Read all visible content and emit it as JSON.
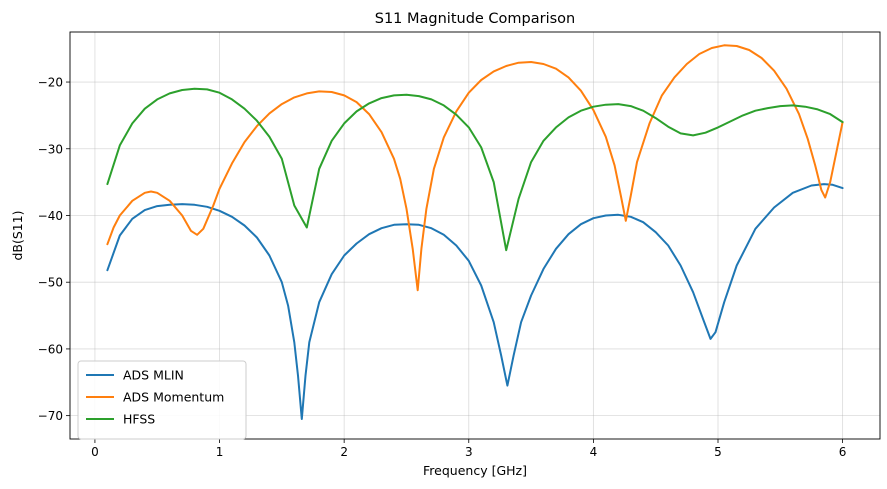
{
  "chart_data": {
    "type": "line",
    "title": "S11 Magnitude Comparison",
    "xlabel": "Frequency [GHz]",
    "ylabel": "dB(S11)",
    "xlim": [
      -0.2,
      6.3
    ],
    "ylim": [
      -73.5,
      -12.5
    ],
    "xticks": [
      0,
      1,
      2,
      3,
      4,
      5,
      6
    ],
    "yticks": [
      -70,
      -60,
      -50,
      -40,
      -30,
      -20
    ],
    "xtick_labels": [
      "0",
      "1",
      "2",
      "3",
      "4",
      "5",
      "6"
    ],
    "ytick_labels": [
      "−70",
      "−60",
      "−50",
      "−40",
      "−30",
      "−20"
    ],
    "grid": true,
    "legend_position": "lower-left",
    "series": [
      {
        "name": "ADS MLIN",
        "color": "#1f77b4",
        "points": [
          [
            0.1,
            -48.2
          ],
          [
            0.2,
            -43.0
          ],
          [
            0.3,
            -40.5
          ],
          [
            0.4,
            -39.2
          ],
          [
            0.5,
            -38.6
          ],
          [
            0.6,
            -38.4
          ],
          [
            0.7,
            -38.3
          ],
          [
            0.8,
            -38.4
          ],
          [
            0.9,
            -38.7
          ],
          [
            1.0,
            -39.3
          ],
          [
            1.1,
            -40.2
          ],
          [
            1.2,
            -41.5
          ],
          [
            1.3,
            -43.3
          ],
          [
            1.4,
            -46.0
          ],
          [
            1.5,
            -50.0
          ],
          [
            1.55,
            -53.5
          ],
          [
            1.6,
            -59.0
          ],
          [
            1.63,
            -64.0
          ],
          [
            1.66,
            -70.5
          ],
          [
            1.69,
            -64.0
          ],
          [
            1.72,
            -59.0
          ],
          [
            1.8,
            -53.0
          ],
          [
            1.9,
            -48.8
          ],
          [
            2.0,
            -46.0
          ],
          [
            2.1,
            -44.2
          ],
          [
            2.2,
            -42.8
          ],
          [
            2.3,
            -41.9
          ],
          [
            2.4,
            -41.4
          ],
          [
            2.5,
            -41.3
          ],
          [
            2.6,
            -41.4
          ],
          [
            2.7,
            -41.9
          ],
          [
            2.8,
            -42.9
          ],
          [
            2.9,
            -44.5
          ],
          [
            3.0,
            -46.8
          ],
          [
            3.1,
            -50.5
          ],
          [
            3.2,
            -56.0
          ],
          [
            3.26,
            -61.0
          ],
          [
            3.31,
            -65.5
          ],
          [
            3.36,
            -61.0
          ],
          [
            3.42,
            -56.0
          ],
          [
            3.5,
            -52.0
          ],
          [
            3.6,
            -48.0
          ],
          [
            3.7,
            -45.0
          ],
          [
            3.8,
            -42.8
          ],
          [
            3.9,
            -41.3
          ],
          [
            4.0,
            -40.4
          ],
          [
            4.1,
            -40.0
          ],
          [
            4.2,
            -39.9
          ],
          [
            4.3,
            -40.2
          ],
          [
            4.4,
            -41.0
          ],
          [
            4.5,
            -42.5
          ],
          [
            4.6,
            -44.5
          ],
          [
            4.7,
            -47.5
          ],
          [
            4.8,
            -51.5
          ],
          [
            4.88,
            -55.5
          ],
          [
            4.94,
            -58.5
          ],
          [
            4.98,
            -57.5
          ],
          [
            5.05,
            -53.0
          ],
          [
            5.15,
            -47.5
          ],
          [
            5.3,
            -42.0
          ],
          [
            5.45,
            -38.8
          ],
          [
            5.6,
            -36.6
          ],
          [
            5.75,
            -35.5
          ],
          [
            5.85,
            -35.3
          ],
          [
            5.92,
            -35.4
          ],
          [
            6.0,
            -35.9
          ]
        ]
      },
      {
        "name": "ADS Momentum",
        "color": "#ff7f0e",
        "points": [
          [
            0.1,
            -44.3
          ],
          [
            0.15,
            -41.8
          ],
          [
            0.2,
            -40.0
          ],
          [
            0.3,
            -37.8
          ],
          [
            0.4,
            -36.6
          ],
          [
            0.45,
            -36.4
          ],
          [
            0.5,
            -36.6
          ],
          [
            0.6,
            -37.8
          ],
          [
            0.7,
            -40.0
          ],
          [
            0.77,
            -42.3
          ],
          [
            0.82,
            -42.9
          ],
          [
            0.87,
            -42.0
          ],
          [
            0.95,
            -38.5
          ],
          [
            1.0,
            -36.0
          ],
          [
            1.1,
            -32.2
          ],
          [
            1.2,
            -29.0
          ],
          [
            1.3,
            -26.6
          ],
          [
            1.4,
            -24.7
          ],
          [
            1.5,
            -23.3
          ],
          [
            1.6,
            -22.3
          ],
          [
            1.7,
            -21.7
          ],
          [
            1.8,
            -21.4
          ],
          [
            1.9,
            -21.5
          ],
          [
            2.0,
            -22.0
          ],
          [
            2.1,
            -23.0
          ],
          [
            2.2,
            -24.8
          ],
          [
            2.3,
            -27.5
          ],
          [
            2.4,
            -31.5
          ],
          [
            2.45,
            -34.5
          ],
          [
            2.5,
            -39.0
          ],
          [
            2.55,
            -45.0
          ],
          [
            2.59,
            -51.2
          ],
          [
            2.62,
            -45.0
          ],
          [
            2.66,
            -39.0
          ],
          [
            2.72,
            -33.0
          ],
          [
            2.8,
            -28.3
          ],
          [
            2.9,
            -24.4
          ],
          [
            3.0,
            -21.6
          ],
          [
            3.1,
            -19.7
          ],
          [
            3.2,
            -18.4
          ],
          [
            3.3,
            -17.6
          ],
          [
            3.4,
            -17.1
          ],
          [
            3.5,
            -17.0
          ],
          [
            3.6,
            -17.3
          ],
          [
            3.7,
            -18.0
          ],
          [
            3.8,
            -19.3
          ],
          [
            3.9,
            -21.3
          ],
          [
            4.0,
            -24.2
          ],
          [
            4.1,
            -28.2
          ],
          [
            4.17,
            -32.5
          ],
          [
            4.22,
            -37.0
          ],
          [
            4.26,
            -40.8
          ],
          [
            4.3,
            -37.0
          ],
          [
            4.35,
            -32.0
          ],
          [
            4.45,
            -26.2
          ],
          [
            4.55,
            -22.0
          ],
          [
            4.65,
            -19.3
          ],
          [
            4.75,
            -17.3
          ],
          [
            4.85,
            -15.8
          ],
          [
            4.95,
            -14.9
          ],
          [
            5.05,
            -14.5
          ],
          [
            5.15,
            -14.6
          ],
          [
            5.25,
            -15.2
          ],
          [
            5.35,
            -16.4
          ],
          [
            5.45,
            -18.3
          ],
          [
            5.55,
            -21.0
          ],
          [
            5.65,
            -24.8
          ],
          [
            5.72,
            -28.5
          ],
          [
            5.78,
            -32.5
          ],
          [
            5.83,
            -36.2
          ],
          [
            5.86,
            -37.3
          ],
          [
            5.9,
            -35.0
          ],
          [
            5.95,
            -30.5
          ],
          [
            6.0,
            -26.0
          ]
        ]
      },
      {
        "name": "HFSS",
        "color": "#2ca02c",
        "points": [
          [
            0.1,
            -35.3
          ],
          [
            0.2,
            -29.5
          ],
          [
            0.3,
            -26.2
          ],
          [
            0.4,
            -24.0
          ],
          [
            0.5,
            -22.6
          ],
          [
            0.6,
            -21.7
          ],
          [
            0.7,
            -21.2
          ],
          [
            0.8,
            -21.0
          ],
          [
            0.9,
            -21.1
          ],
          [
            1.0,
            -21.6
          ],
          [
            1.1,
            -22.6
          ],
          [
            1.2,
            -24.0
          ],
          [
            1.3,
            -25.8
          ],
          [
            1.4,
            -28.2
          ],
          [
            1.5,
            -31.5
          ],
          [
            1.6,
            -38.5
          ],
          [
            1.7,
            -41.8
          ],
          [
            1.8,
            -33.0
          ],
          [
            1.9,
            -28.8
          ],
          [
            2.0,
            -26.2
          ],
          [
            2.1,
            -24.4
          ],
          [
            2.2,
            -23.2
          ],
          [
            2.3,
            -22.4
          ],
          [
            2.4,
            -22.0
          ],
          [
            2.5,
            -21.9
          ],
          [
            2.6,
            -22.1
          ],
          [
            2.7,
            -22.6
          ],
          [
            2.8,
            -23.5
          ],
          [
            2.9,
            -24.9
          ],
          [
            3.0,
            -26.8
          ],
          [
            3.1,
            -29.8
          ],
          [
            3.2,
            -35.0
          ],
          [
            3.3,
            -45.2
          ],
          [
            3.4,
            -37.5
          ],
          [
            3.5,
            -32.0
          ],
          [
            3.6,
            -28.8
          ],
          [
            3.7,
            -26.8
          ],
          [
            3.8,
            -25.3
          ],
          [
            3.9,
            -24.3
          ],
          [
            4.0,
            -23.7
          ],
          [
            4.1,
            -23.4
          ],
          [
            4.2,
            -23.3
          ],
          [
            4.3,
            -23.6
          ],
          [
            4.4,
            -24.3
          ],
          [
            4.5,
            -25.4
          ],
          [
            4.6,
            -26.7
          ],
          [
            4.7,
            -27.7
          ],
          [
            4.8,
            -28.0
          ],
          [
            4.9,
            -27.6
          ],
          [
            5.0,
            -26.8
          ],
          [
            5.1,
            -25.9
          ],
          [
            5.2,
            -25.0
          ],
          [
            5.3,
            -24.3
          ],
          [
            5.4,
            -23.9
          ],
          [
            5.5,
            -23.6
          ],
          [
            5.6,
            -23.5
          ],
          [
            5.7,
            -23.7
          ],
          [
            5.8,
            -24.1
          ],
          [
            5.9,
            -24.8
          ],
          [
            6.0,
            -26.0
          ]
        ]
      }
    ]
  }
}
